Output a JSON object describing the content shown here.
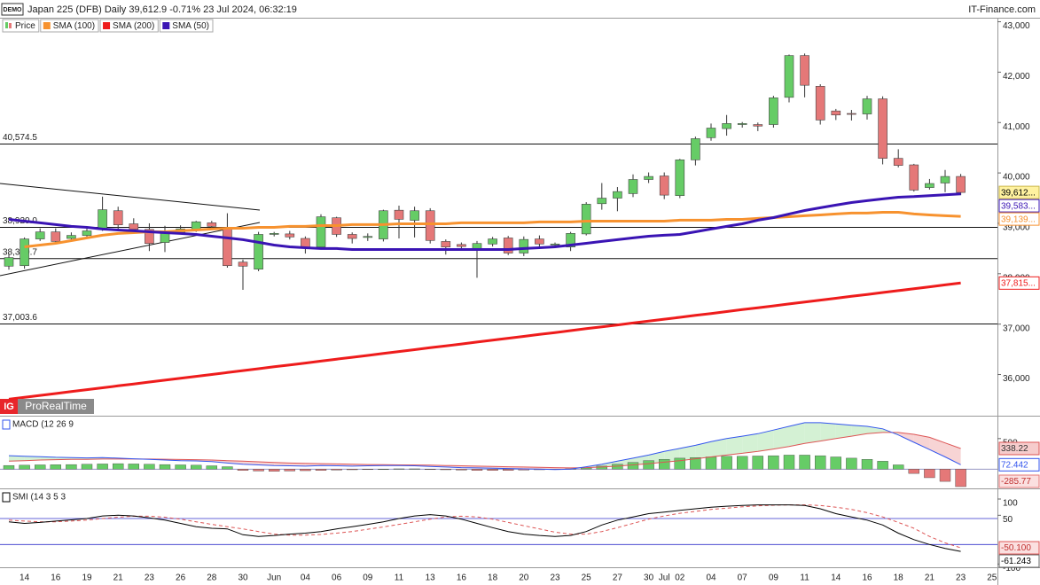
{
  "header": {
    "title": "Japan 225 (DFB) Daily 39,612.9 -0.71% 23 Jul 2024, 06:32:19",
    "source": "IT-Finance.com",
    "badge": "DEMO",
    "brand_logo": "IG",
    "brand": "ProRealTime"
  },
  "chart_data": [
    {
      "type": "candlestick",
      "categories": [
        null,
        "14",
        null,
        "16",
        null,
        "19",
        null,
        "21",
        null,
        "23",
        null,
        "26",
        null,
        "28",
        null,
        "30",
        null,
        "Jun",
        null,
        "04",
        null,
        "06",
        null,
        "09",
        null,
        "11",
        null,
        "13",
        null,
        "16",
        null,
        "18",
        null,
        "20",
        null,
        "23",
        null,
        "25",
        null,
        "27",
        null,
        "30",
        "Jul",
        "02",
        null,
        "04",
        null,
        "07",
        null,
        "09",
        null,
        "11",
        null,
        "14",
        null,
        "16",
        null,
        "18",
        null,
        "21",
        null,
        "23",
        null,
        "25"
      ],
      "series": [
        {
          "name": "Price",
          "up_color": "#66cc66",
          "down_color": "#e57878",
          "last_label": "39,612...",
          "open": [
            38150,
            38160,
            38690,
            38830,
            38700,
            38760,
            38880,
            39250,
            38990,
            38880,
            38620,
            38820,
            38880,
            39010,
            38900,
            38230,
            38090,
            38780,
            38790,
            38700,
            38530,
            39110,
            38780,
            38720,
            38690,
            39260,
            39060,
            39250,
            38640,
            38580,
            38500,
            38590,
            38710,
            38410,
            38690,
            38570,
            38530,
            38790,
            39390,
            39500,
            39590,
            39870,
            39940,
            39550,
            40260,
            40700,
            40880,
            40960,
            40960,
            40960,
            41500,
            42330,
            41720,
            41230,
            41180,
            41170,
            41470,
            40290,
            40160,
            39710,
            39800,
            39930,
            null,
            null
          ],
          "high": [
            38400,
            38720,
            38900,
            38900,
            38820,
            38900,
            39530,
            39330,
            39100,
            39000,
            38950,
            38960,
            39050,
            39050,
            39200,
            38280,
            38830,
            38830,
            38850,
            38740,
            39180,
            39130,
            38820,
            38800,
            39270,
            39350,
            39330,
            39300,
            38680,
            38620,
            38650,
            38730,
            38750,
            38740,
            38760,
            38620,
            38830,
            39420,
            39800,
            39720,
            39970,
            40010,
            40010,
            40280,
            40720,
            40980,
            41150,
            41010,
            41000,
            41530,
            42350,
            42370,
            41760,
            41270,
            41250,
            41530,
            41520,
            40470,
            40180,
            39880,
            40060,
            39980,
            null,
            null
          ],
          "low": [
            38080,
            38100,
            38650,
            38600,
            38680,
            38730,
            38850,
            38880,
            38820,
            38450,
            38430,
            38780,
            38830,
            38900,
            38120,
            37680,
            38050,
            38740,
            38680,
            38400,
            38480,
            38730,
            38600,
            38650,
            38640,
            38700,
            38720,
            38600,
            38380,
            38490,
            37920,
            38540,
            38370,
            38350,
            38540,
            38540,
            38450,
            38760,
            39270,
            39240,
            39520,
            39800,
            39480,
            39500,
            40150,
            40640,
            40740,
            40900,
            40830,
            40900,
            41400,
            41500,
            40960,
            41050,
            41040,
            41060,
            40170,
            40110,
            39630,
            39670,
            39620,
            39560,
            null,
            null
          ],
          "close": [
            38320,
            38690,
            38830,
            38640,
            38760,
            38850,
            39270,
            38970,
            38880,
            38600,
            38850,
            38890,
            39030,
            38940,
            38160,
            38150,
            38780,
            38800,
            38730,
            38510,
            39130,
            38780,
            38700,
            38740,
            39250,
            39080,
            39250,
            38660,
            38530,
            38540,
            38600,
            38690,
            38410,
            38680,
            38590,
            38590,
            38800,
            39380,
            39500,
            39630,
            39870,
            39930,
            39560,
            40260,
            40680,
            40890,
            40980,
            40980,
            40930,
            41490,
            42330,
            41740,
            41050,
            41150,
            41170,
            41470,
            40290,
            40150,
            39660,
            39790,
            39930,
            39612.9,
            null,
            null
          ]
        },
        {
          "name": "SMA (100)",
          "color": "#f7922f",
          "last_label": "39,139...",
          "values": [
            null,
            38534,
            38569,
            38604,
            38657,
            38710,
            38763,
            38798,
            38815,
            38833,
            38833,
            38851,
            38868,
            38886,
            38903,
            38903,
            38921,
            38921,
            38939,
            38939,
            38956,
            38956,
            38974,
            38974,
            38974,
            38991,
            38991,
            38991,
            38991,
            39009,
            39009,
            39009,
            39009,
            39009,
            39027,
            39027,
            39027,
            39044,
            39044,
            39044,
            39044,
            39044,
            39044,
            39062,
            39062,
            39062,
            39079,
            39079,
            39097,
            39114,
            39132,
            39150,
            39167,
            39185,
            39203,
            39203,
            39220,
            39220,
            39185,
            39167,
            39150,
            39139,
            null,
            null
          ]
        },
        {
          "name": "SMA (200)",
          "color": "#ee1c1c",
          "last_label": "37,815...",
          "values": [
            35510,
            35548,
            35586,
            35623,
            35661,
            35699,
            35737,
            35775,
            35812,
            35850,
            35888,
            35926,
            35964,
            36001,
            36039,
            36077,
            36115,
            36153,
            36190,
            36228,
            36266,
            36304,
            36342,
            36379,
            36417,
            36455,
            36493,
            36531,
            36568,
            36606,
            36644,
            36682,
            36720,
            36757,
            36795,
            36833,
            36871,
            36909,
            36946,
            36984,
            37022,
            37060,
            37098,
            37135,
            37173,
            37211,
            37249,
            37287,
            37324,
            37362,
            37400,
            37438,
            37476,
            37513,
            37551,
            37589,
            37627,
            37665,
            37702,
            37740,
            37778,
            37815,
            null,
            null
          ]
        },
        {
          "name": "SMA (50)",
          "color": "#3a14b4",
          "last_label": "39,583...",
          "values": [
            39079,
            39044,
            39009,
            38974,
            38939,
            38921,
            38886,
            38868,
            38851,
            38833,
            38815,
            38798,
            38780,
            38745,
            38710,
            38675,
            38622,
            38569,
            38534,
            38516,
            38499,
            38499,
            38481,
            38481,
            38481,
            38481,
            38481,
            38481,
            38481,
            38481,
            38481,
            38481,
            38481,
            38499,
            38516,
            38534,
            38569,
            38604,
            38640,
            38675,
            38710,
            38745,
            38763,
            38780,
            38833,
            38886,
            38939,
            38991,
            39062,
            39114,
            39185,
            39255,
            39308,
            39361,
            39413,
            39449,
            39484,
            39519,
            39530,
            39550,
            39565,
            39583,
            null,
            null
          ]
        }
      ],
      "horizontal_lines": [
        {
          "value": 40574.5,
          "label": "40,574.5"
        },
        {
          "value": 38920.0,
          "label": "38,920.0"
        },
        {
          "value": 38300.7,
          "label": "38,300.7"
        },
        {
          "value": 37003.6,
          "label": "37,003.6"
        }
      ],
      "ylim": [
        35200,
        43080
      ],
      "yticks": [
        {
          "value": 43000,
          "label": "43,000"
        },
        {
          "value": 42000,
          "label": "42,000"
        },
        {
          "value": 41000,
          "label": "41,000"
        },
        {
          "value": 40000,
          "label": "40,000"
        },
        {
          "value": 39000,
          "label": "39,000"
        },
        {
          "value": 38000,
          "label": "38,000"
        },
        {
          "value": 37000,
          "label": "37,000"
        },
        {
          "value": 36000,
          "label": "36,000"
        }
      ]
    },
    {
      "type": "macd",
      "title": "MACD (12 26 9",
      "macd": {
        "color": "#3355ee",
        "values": [
          220,
          210,
          205,
          195,
          190,
          185,
          190,
          180,
          170,
          160,
          150,
          140,
          135,
          125,
          100,
          80,
          70,
          60,
          55,
          50,
          60,
          55,
          50,
          55,
          60,
          60,
          55,
          45,
          35,
          25,
          20,
          15,
          10,
          5,
          0,
          -5,
          0,
          40,
          80,
          130,
          180,
          230,
          290,
          340,
          390,
          450,
          500,
          540,
          580,
          640,
          700,
          760,
          760,
          740,
          720,
          700,
          660,
          560,
          440,
          320,
          200,
          72.442,
          null,
          null
        ]
      },
      "signal": {
        "color": "#dd5555",
        "values": [
          130,
          140,
          150,
          155,
          160,
          160,
          165,
          165,
          165,
          165,
          162,
          158,
          155,
          150,
          140,
          130,
          120,
          110,
          100,
          95,
          90,
          85,
          80,
          75,
          72,
          70,
          68,
          65,
          60,
          55,
          50,
          45,
          40,
          35,
          30,
          25,
          20,
          25,
          35,
          50,
          70,
          90,
          115,
          140,
          170,
          200,
          230,
          260,
          290,
          330,
          370,
          420,
          460,
          500,
          540,
          580,
          600,
          600,
          570,
          520,
          430,
          338.22,
          null,
          null
        ]
      },
      "histogram": {
        "up_color": "#66cc66",
        "down_color": "#e57878",
        "values": [
          60,
          65,
          70,
          72,
          75,
          80,
          85,
          90,
          85,
          80,
          75,
          70,
          65,
          55,
          40,
          -20,
          -30,
          -35,
          -30,
          -25,
          -20,
          -15,
          -10,
          -5,
          0,
          5,
          5,
          -5,
          -10,
          -15,
          -20,
          -20,
          -20,
          -15,
          -10,
          -5,
          5,
          20,
          50,
          80,
          110,
          140,
          160,
          180,
          190,
          200,
          210,
          210,
          215,
          220,
          230,
          230,
          220,
          200,
          180,
          160,
          130,
          70,
          -70,
          -140,
          -200,
          -285.77,
          null,
          null
        ]
      },
      "ylim": [
        -300,
        860
      ],
      "yticks": [
        500
      ]
    },
    {
      "type": "smi",
      "title": "SMI (14 3 5 3",
      "levels": [
        40,
        -40
      ],
      "levels_color": "#3333cc",
      "smi": {
        "color": "#000000",
        "values": [
          30,
          25,
          28,
          32,
          36,
          40,
          48,
          50,
          48,
          42,
          35,
          25,
          15,
          10,
          8,
          -10,
          -15,
          -12,
          -8,
          -5,
          0,
          8,
          15,
          22,
          30,
          40,
          48,
          52,
          48,
          38,
          25,
          12,
          0,
          -8,
          -12,
          -15,
          -12,
          0,
          20,
          35,
          45,
          55,
          60,
          65,
          70,
          75,
          78,
          80,
          82,
          82,
          82,
          80,
          70,
          55,
          45,
          35,
          20,
          -5,
          -25,
          -40,
          -52,
          -61.243,
          null,
          null
        ]
      },
      "signal": {
        "color": "#dd5555",
        "last_label": "-50.100",
        "values": [
          35,
          32,
          30,
          30,
          32,
          35,
          40,
          44,
          47,
          47,
          44,
          38,
          30,
          22,
          15,
          8,
          0,
          -8,
          -11,
          -11,
          -9,
          -5,
          0,
          7,
          14,
          22,
          30,
          38,
          45,
          47,
          45,
          38,
          28,
          18,
          8,
          -2,
          -8,
          -8,
          0,
          12,
          25,
          38,
          48,
          56,
          62,
          68,
          72,
          76,
          79,
          81,
          82,
          82,
          80,
          75,
          68,
          58,
          45,
          28,
          10,
          -15,
          -35,
          -50.1,
          null,
          null
        ]
      },
      "ylim": [
        -110,
        130
      ],
      "yticks": [
        100,
        50,
        -100
      ]
    }
  ]
}
